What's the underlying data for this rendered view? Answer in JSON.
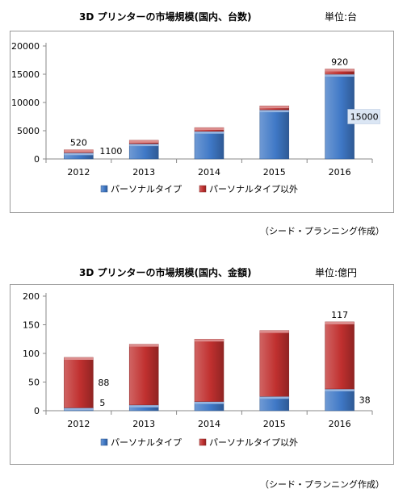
{
  "charts_text": [
    {
      "title": "3D プリンターの市場規模(国内、台数)",
      "unit": "単位:台",
      "source": "（シード・プランニング作成）"
    },
    {
      "title": "3D プリンターの市場規模(国内、金額)",
      "unit": "単位:億円",
      "source": "（シード・プランニング作成）"
    }
  ],
  "chart_data": [
    {
      "type": "bar",
      "stacked": true,
      "categories": [
        "2012",
        "2013",
        "2014",
        "2015",
        "2016"
      ],
      "series": [
        {
          "name": "パーソナルタイプ",
          "color": "#3f78c6",
          "values": [
            1100,
            2700,
            4900,
            8700,
            15000
          ]
        },
        {
          "name": "パーソナルタイプ以外",
          "color": "#c0302f",
          "values": [
            520,
            600,
            650,
            700,
            920
          ]
        }
      ],
      "ylim": [
        0,
        20000
      ],
      "yticks": [
        "0",
        "5000",
        "10000",
        "15000",
        "20000"
      ],
      "grid": false,
      "legend": "bottom",
      "annotations": [
        {
          "category": "2012",
          "series": 1,
          "text": "520"
        },
        {
          "category": "2012",
          "series": 0,
          "text": "1100"
        },
        {
          "category": "2016",
          "series": 1,
          "text": "920"
        },
        {
          "category": "2016",
          "series": 0,
          "text": "15000"
        }
      ]
    },
    {
      "type": "bar",
      "stacked": true,
      "categories": [
        "2012",
        "2013",
        "2014",
        "2015",
        "2016"
      ],
      "series": [
        {
          "name": "パーソナルタイプ",
          "color": "#3f78c6",
          "values": [
            5,
            10,
            16,
            25,
            38
          ]
        },
        {
          "name": "パーソナルタイプ以外",
          "color": "#c0302f",
          "values": [
            88,
            106,
            109,
            115,
            117
          ]
        }
      ],
      "ylim": [
        0,
        200
      ],
      "yticks": [
        "0",
        "50",
        "100",
        "150",
        "200"
      ],
      "grid": false,
      "legend": "bottom",
      "annotations": [
        {
          "category": "2012",
          "series": 1,
          "text": "88"
        },
        {
          "category": "2012",
          "series": 0,
          "text": "5"
        },
        {
          "category": "2016",
          "series": 1,
          "text": "117"
        },
        {
          "category": "2016",
          "series": 0,
          "text": "38"
        }
      ]
    }
  ]
}
